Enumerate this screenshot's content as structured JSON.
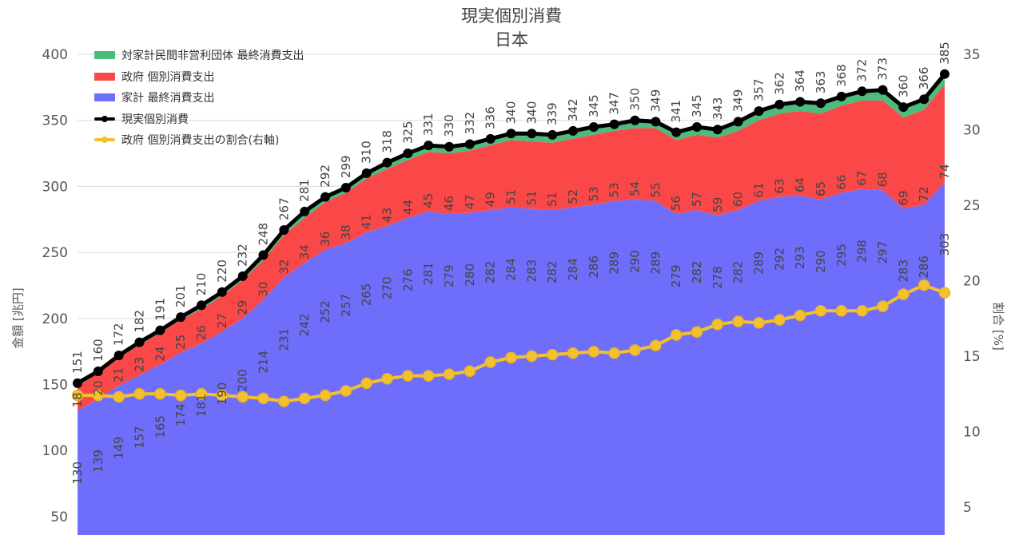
{
  "title": "現実個別消費",
  "subtitle": "日本",
  "y_left_title": "金額 [兆円]",
  "y_right_title": "割合 [%]",
  "colors": {
    "npish": "#4cbb7b",
    "government": "#fa4848",
    "household": "#6e6efb",
    "total": "#000000",
    "ratio": "#f2c12e",
    "ratio_marker_edge": "#f0b323",
    "grid": "#d9d9d9",
    "axis_text": "#555555",
    "label_text": "#444444"
  },
  "legend": [
    {
      "label": "対家計民間非営利団体 最終消費支出",
      "key": "npish"
    },
    {
      "label": "政府 個別消費支出",
      "key": "government"
    },
    {
      "label": "家計 最終消費支出",
      "key": "household"
    },
    {
      "label": "現実個別消費",
      "key": "total"
    },
    {
      "label": "政府 個別消費支出の割合(右軸)",
      "key": "ratio"
    }
  ],
  "chart_data": {
    "type": "area",
    "title": "現実個別消費",
    "subtitle": "日本",
    "ylabel": "金額 [兆円]",
    "ylabel_right": "割合 [%]",
    "ylim": [
      40,
      400
    ],
    "ylim_right": [
      3.5,
      35
    ],
    "yticks": [
      50,
      100,
      150,
      200,
      250,
      300,
      350,
      400
    ],
    "yticks_right": [
      5,
      10,
      15,
      20,
      25,
      30,
      35
    ],
    "grid": true,
    "legend_position": "top-left",
    "series": [
      {
        "name": "家計 最終消費支出",
        "kind": "stacked-area",
        "values": [
          130,
          139,
          149,
          157,
          165,
          174,
          181,
          190,
          200,
          214,
          231,
          242,
          252,
          257,
          265,
          270,
          276,
          281,
          279,
          280,
          282,
          284,
          283,
          282,
          284,
          286,
          289,
          290,
          289,
          279,
          282,
          278,
          282,
          289,
          292,
          293,
          290,
          295,
          298,
          297,
          283,
          286,
          303
        ]
      },
      {
        "name": "政府 個別消費支出",
        "kind": "stacked-area",
        "values": [
          18,
          20,
          21,
          23,
          24,
          25,
          26,
          27,
          29,
          30,
          32,
          34,
          36,
          38,
          41,
          43,
          44,
          45,
          46,
          47,
          49,
          51,
          51,
          51,
          52,
          53,
          53,
          54,
          55,
          56,
          57,
          59,
          60,
          61,
          63,
          64,
          65,
          66,
          67,
          68,
          69,
          72,
          74
        ]
      },
      {
        "name": "対家計民間非営利団体 最終消費支出",
        "kind": "stacked-area",
        "values": [
          3,
          1,
          2,
          2,
          2,
          2,
          3,
          3,
          3,
          4,
          4,
          5,
          4,
          4,
          4,
          5,
          5,
          5,
          5,
          5,
          5,
          5,
          6,
          6,
          6,
          6,
          5,
          6,
          5,
          6,
          6,
          6,
          7,
          7,
          7,
          7,
          8,
          7,
          7,
          8,
          8,
          8,
          8
        ]
      },
      {
        "name": "現実個別消費",
        "kind": "line",
        "values": [
          151,
          160,
          172,
          182,
          191,
          201,
          210,
          220,
          232,
          248,
          267,
          281,
          292,
          299,
          310,
          318,
          325,
          331,
          330,
          332,
          336,
          340,
          340,
          339,
          342,
          345,
          347,
          350,
          349,
          341,
          345,
          343,
          349,
          357,
          362,
          364,
          363,
          368,
          372,
          373,
          360,
          366,
          385
        ]
      },
      {
        "name": "政府 個別消費支出の割合(右軸)",
        "kind": "line",
        "axis": "right",
        "values": [
          12.4,
          12.4,
          12.3,
          12.5,
          12.5,
          12.4,
          12.5,
          12.4,
          12.3,
          12.2,
          12.0,
          12.2,
          12.4,
          12.7,
          13.2,
          13.5,
          13.7,
          13.7,
          13.8,
          14.0,
          14.6,
          14.9,
          15.0,
          15.1,
          15.2,
          15.3,
          15.2,
          15.4,
          15.7,
          16.4,
          16.6,
          17.1,
          17.3,
          17.2,
          17.4,
          17.7,
          18.0,
          18.0,
          18.0,
          18.3,
          19.1,
          19.7,
          19.2
        ]
      }
    ]
  }
}
